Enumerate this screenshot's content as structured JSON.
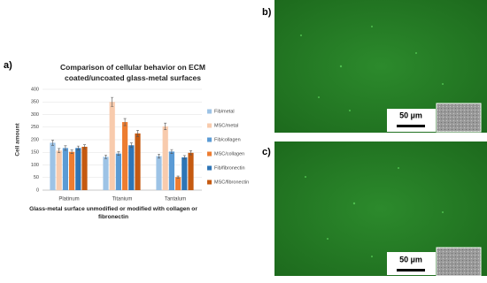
{
  "panels": {
    "a": {
      "label": "a)"
    },
    "b": {
      "label": "b)",
      "scale_bar": "50 µm"
    },
    "c": {
      "label": "c)",
      "scale_bar": "50 µm"
    }
  },
  "chart_data": {
    "type": "bar",
    "title": "Comparison of cellular behavior on ECM coated/uncoated  glass-metal surfaces",
    "x_label": "Glass-metal surface unmodified or modified with collagen or fibronectin",
    "y_label": "Cell amount",
    "categories": [
      "Platinum",
      "Titanium",
      "Tantalum"
    ],
    "ylim": [
      0,
      400
    ],
    "yticks": [
      0,
      50,
      100,
      150,
      200,
      250,
      300,
      350,
      400
    ],
    "grid": true,
    "series": [
      {
        "name": "Fib/metal",
        "color": "#9dc3e6",
        "values": [
          188,
          132,
          135
        ],
        "errors": [
          10,
          7,
          8
        ]
      },
      {
        "name": "MSC/metal",
        "color": "#f8cbad",
        "values": [
          157,
          350,
          253
        ],
        "errors": [
          8,
          18,
          13
        ]
      },
      {
        "name": "Fib/collagen",
        "color": "#5b9bd5",
        "values": [
          167,
          145,
          153
        ],
        "errors": [
          9,
          7,
          8
        ]
      },
      {
        "name": "MSC/collagen",
        "color": "#ed7d31",
        "values": [
          152,
          270,
          52
        ],
        "errors": [
          7,
          14,
          4
        ]
      },
      {
        "name": "Fib/fibronectin",
        "color": "#2e75b6",
        "values": [
          167,
          178,
          130
        ],
        "errors": [
          8,
          9,
          7
        ]
      },
      {
        "name": "MSC/fibronectin",
        "color": "#c55a11",
        "values": [
          172,
          225,
          148
        ],
        "errors": [
          8,
          12,
          8
        ]
      }
    ]
  }
}
